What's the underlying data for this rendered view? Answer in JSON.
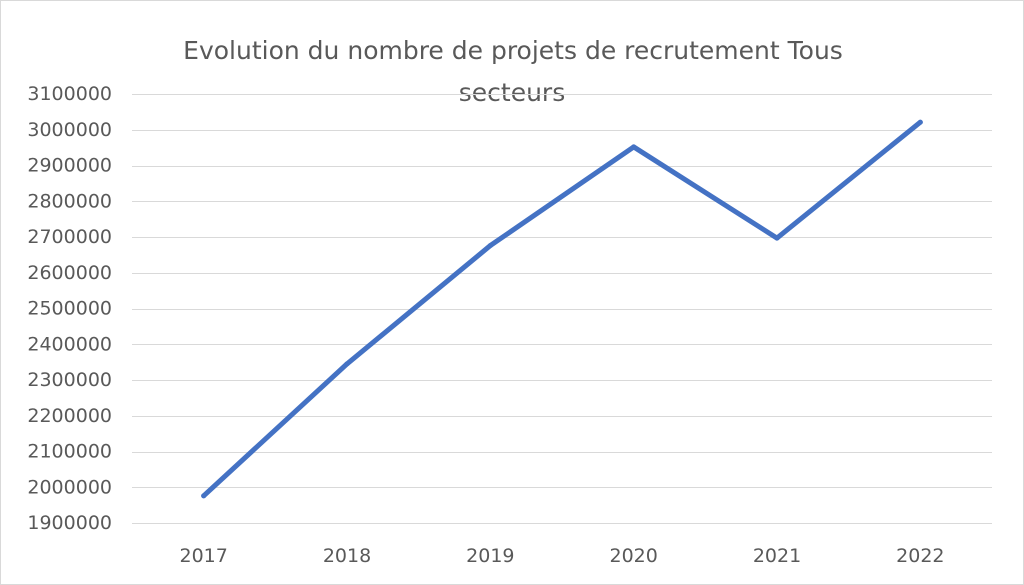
{
  "chart": {
    "title_line1": "Evolution du nombre de projets de recrutement Tous",
    "title_line2": "secteurs"
  },
  "chart_data": {
    "type": "line",
    "title": "Evolution du nombre de projets de recrutement Tous secteurs",
    "xlabel": "",
    "ylabel": "",
    "categories": [
      "2017",
      "2018",
      "2019",
      "2020",
      "2021",
      "2022"
    ],
    "series": [
      {
        "values": [
          1976000,
          2345000,
          2676000,
          2952000,
          2697000,
          3021000
        ],
        "color": "#4472c4"
      }
    ],
    "ylim": [
      1900000,
      3100000
    ],
    "yticks": [
      1900000,
      2000000,
      2100000,
      2200000,
      2300000,
      2400000,
      2500000,
      2600000,
      2700000,
      2800000,
      2900000,
      3000000,
      3100000
    ],
    "grid": true,
    "legend": "none"
  }
}
